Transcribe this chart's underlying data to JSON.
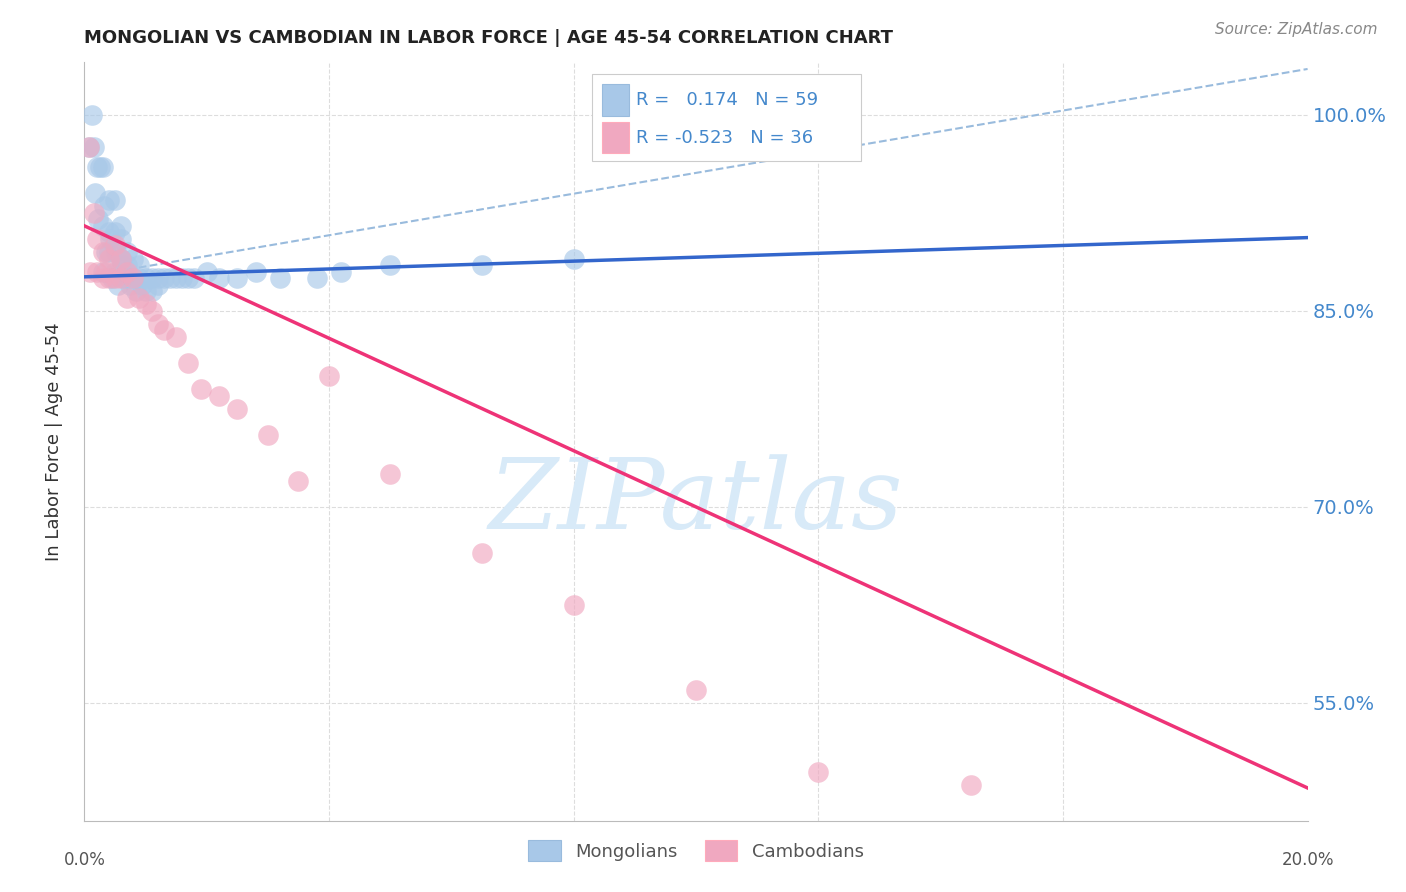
{
  "title": "MONGOLIAN VS CAMBODIAN IN LABOR FORCE | AGE 45-54 CORRELATION CHART",
  "source": "Source: ZipAtlas.com",
  "ylabel": "In Labor Force | Age 45-54",
  "xlim": [
    0.0,
    0.2
  ],
  "ylim": [
    0.46,
    1.04
  ],
  "yticks": [
    0.55,
    0.7,
    0.85,
    1.0
  ],
  "ytick_labels": [
    "55.0%",
    "70.0%",
    "85.0%",
    "100.0%"
  ],
  "mongolian_R": 0.174,
  "mongolian_N": 59,
  "cambodian_R": -0.523,
  "cambodian_N": 36,
  "mongolian_color": "#a8c8e8",
  "cambodian_color": "#f0a8c0",
  "mongolian_line_color": "#3366cc",
  "cambodian_line_color": "#ee3377",
  "dashed_line_color": "#99bbdd",
  "watermark_color": "#d8eaf8",
  "grid_color": "#dddddd",
  "mongolian_x": [
    0.0008,
    0.0012,
    0.0015,
    0.0018,
    0.002,
    0.0022,
    0.0025,
    0.003,
    0.003,
    0.003,
    0.0032,
    0.0035,
    0.004,
    0.004,
    0.004,
    0.0042,
    0.0045,
    0.005,
    0.005,
    0.005,
    0.0052,
    0.0055,
    0.006,
    0.006,
    0.006,
    0.0062,
    0.0065,
    0.007,
    0.007,
    0.0072,
    0.0075,
    0.008,
    0.008,
    0.0085,
    0.009,
    0.009,
    0.0095,
    0.01,
    0.01,
    0.011,
    0.011,
    0.012,
    0.012,
    0.013,
    0.014,
    0.015,
    0.016,
    0.017,
    0.018,
    0.02,
    0.022,
    0.025,
    0.028,
    0.032,
    0.038,
    0.042,
    0.05,
    0.065,
    0.08
  ],
  "mongolian_y": [
    0.975,
    1.0,
    0.975,
    0.94,
    0.96,
    0.92,
    0.96,
    0.96,
    0.915,
    0.88,
    0.93,
    0.895,
    0.935,
    0.91,
    0.895,
    0.905,
    0.875,
    0.935,
    0.91,
    0.88,
    0.895,
    0.87,
    0.915,
    0.905,
    0.89,
    0.885,
    0.875,
    0.895,
    0.885,
    0.875,
    0.87,
    0.89,
    0.875,
    0.865,
    0.885,
    0.875,
    0.87,
    0.875,
    0.865,
    0.875,
    0.865,
    0.875,
    0.87,
    0.875,
    0.875,
    0.875,
    0.875,
    0.875,
    0.875,
    0.88,
    0.875,
    0.875,
    0.88,
    0.875,
    0.875,
    0.88,
    0.885,
    0.885,
    0.89
  ],
  "cambodian_x": [
    0.0008,
    0.001,
    0.0015,
    0.002,
    0.002,
    0.003,
    0.003,
    0.0035,
    0.004,
    0.004,
    0.005,
    0.005,
    0.006,
    0.006,
    0.007,
    0.007,
    0.008,
    0.009,
    0.01,
    0.011,
    0.012,
    0.013,
    0.015,
    0.017,
    0.019,
    0.022,
    0.025,
    0.03,
    0.035,
    0.04,
    0.05,
    0.065,
    0.08,
    0.1,
    0.12,
    0.145
  ],
  "cambodian_y": [
    0.975,
    0.88,
    0.925,
    0.905,
    0.88,
    0.895,
    0.875,
    0.88,
    0.89,
    0.875,
    0.9,
    0.875,
    0.89,
    0.875,
    0.88,
    0.86,
    0.875,
    0.86,
    0.855,
    0.85,
    0.84,
    0.835,
    0.83,
    0.81,
    0.79,
    0.785,
    0.775,
    0.755,
    0.72,
    0.8,
    0.725,
    0.665,
    0.625,
    0.56,
    0.497,
    0.487
  ],
  "mongolian_trendline_x": [
    0.0,
    0.2
  ],
  "mongolian_trendline_y": [
    0.876,
    0.906
  ],
  "cambodian_trendline_x": [
    0.0,
    0.2
  ],
  "cambodian_trendline_y": [
    0.915,
    0.485
  ],
  "dashed_line_x": [
    0.0,
    0.2
  ],
  "dashed_line_y": [
    0.876,
    1.035
  ]
}
